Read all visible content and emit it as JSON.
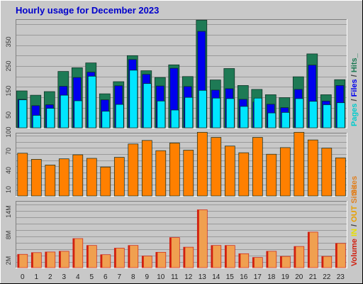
{
  "chart_data": [
    {
      "type": "bar",
      "title": "Hourly usage for December 2023",
      "categories": [
        "0",
        "1",
        "2",
        "3",
        "4",
        "5",
        "6",
        "7",
        "8",
        "9",
        "10",
        "11",
        "12",
        "13",
        "14",
        "15",
        "16",
        "17",
        "18",
        "19",
        "20",
        "21",
        "22",
        "23"
      ],
      "yticks": [
        "50",
        "150",
        "250",
        "350"
      ],
      "ylim": [
        0,
        450
      ],
      "side_label": [
        "Pages",
        " / ",
        "Files",
        " / ",
        "Hits",
        "_"
      ],
      "series": [
        {
          "name": "Hits",
          "color": "#1e7a55",
          "values": [
            155,
            137,
            152,
            235,
            250,
            270,
            143,
            193,
            300,
            238,
            210,
            262,
            214,
            446,
            200,
            247,
            177,
            161,
            139,
            127,
            213,
            307,
            139,
            201
          ]
        },
        {
          "name": "Files",
          "color": "#0000ee",
          "values": [
            120,
            94,
            98,
            174,
            210,
            232,
            118,
            176,
            284,
            223,
            175,
            248,
            173,
            400,
            158,
            164,
            120,
            109,
            100,
            86,
            161,
            261,
            113,
            177
          ]
        },
        {
          "name": "Pages",
          "color": "#00e5ff",
          "values": [
            118,
            54,
            83,
            137,
            114,
            215,
            71,
            99,
            240,
            185,
            113,
            76,
            128,
            157,
            125,
            123,
            91,
            125,
            64,
            66,
            123,
            112,
            98,
            106
          ]
        }
      ]
    },
    {
      "type": "bar",
      "categories": [
        "0",
        "1",
        "2",
        "3",
        "4",
        "5",
        "6",
        "7",
        "8",
        "9",
        "10",
        "11",
        "12",
        "13",
        "14",
        "15",
        "16",
        "17",
        "18",
        "19",
        "20",
        "21",
        "22",
        "23"
      ],
      "yticks": [
        "10",
        "40",
        "70",
        "100"
      ],
      "ylim": [
        0,
        125
      ],
      "side_label": [
        "Sites"
      ],
      "series": [
        {
          "name": "Sites",
          "color": "#ff8000",
          "values": [
            85,
            73,
            62,
            74,
            82,
            75,
            58,
            77,
            103,
            110,
            90,
            105,
            91,
            126,
            116,
            99,
            86,
            116,
            83,
            96,
            126,
            111,
            95,
            76
          ]
        }
      ]
    },
    {
      "type": "bar",
      "categories": [
        "0",
        "1",
        "2",
        "3",
        "4",
        "5",
        "6",
        "7",
        "8",
        "9",
        "10",
        "11",
        "12",
        "13",
        "14",
        "15",
        "16",
        "17",
        "18",
        "19",
        "20",
        "21",
        "22",
        "23"
      ],
      "yticks": [
        "2M",
        "8M",
        "14M"
      ],
      "ylim": [
        0,
        19.7
      ],
      "side_label": [
        "Volume",
        " ",
        "IN",
        " / ",
        "OUT",
        " ",
        "Sites"
      ],
      "series": [
        {
          "name": "Volume",
          "color": "#f0a050",
          "edge": "#d02010",
          "values": [
            4.1,
            4.6,
            4.8,
            5.0,
            8.7,
            6.7,
            4.0,
            5.9,
            6.7,
            3.6,
            4.7,
            9.0,
            6.2,
            17.1,
            6.7,
            6.7,
            4.3,
            3.2,
            5.0,
            3.5,
            6.4,
            10.6,
            3.5,
            7.3
          ]
        }
      ]
    }
  ]
}
